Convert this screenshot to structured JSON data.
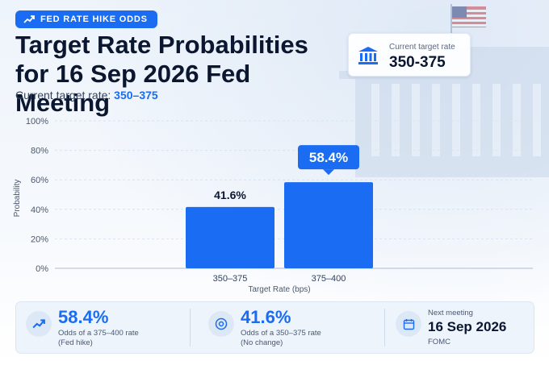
{
  "badge": {
    "label": "FED RATE HIKE ODDS",
    "icon": "trend-up-icon"
  },
  "title": "Target Rate Probabilities for 16 Sep 2026 Fed Meeting",
  "subtitle": {
    "label": "Current target rate:",
    "value": "350–375"
  },
  "current_rate_card": {
    "label": "Current target rate",
    "value": "350-375",
    "icon": "bank-icon"
  },
  "chart_data": {
    "type": "bar",
    "categories": [
      "350–375",
      "375–400"
    ],
    "values": [
      41.6,
      58.4
    ],
    "value_labels": [
      "41.6%",
      "58.4%"
    ],
    "highlighted_index": 1,
    "xlabel": "Target Rate (bps)",
    "ylabel": "Probability",
    "ylim": [
      0,
      100
    ],
    "yticks": [
      0,
      20,
      40,
      60,
      80,
      100
    ],
    "ytick_labels": [
      "0%",
      "20%",
      "40%",
      "60%",
      "80%",
      "100%"
    ],
    "grid": true,
    "colors": {
      "bar": "#1a6cf2",
      "highlight_label": "#1a6cf2"
    }
  },
  "stats": [
    {
      "icon": "trend-up-icon",
      "value": "58.4%",
      "line1": "Odds of a 375–400 rate",
      "line2": "(Fed hike)"
    },
    {
      "icon": "target-icon",
      "value": "41.6%",
      "line1": "Odds of a 350–375 rate",
      "line2": "(No change)"
    },
    {
      "icon": "calendar-icon",
      "label": "Next meeting",
      "value": "16 Sep 2026",
      "sub": "FOMC"
    }
  ]
}
